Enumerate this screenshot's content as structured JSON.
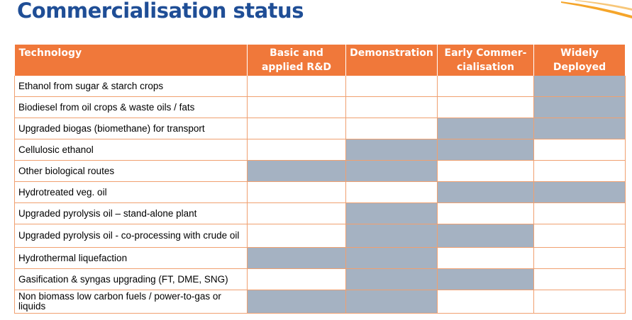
{
  "title": "Commercialisation status",
  "columns": {
    "technology": "Technology",
    "basic_line1": "Basic and",
    "basic_line2": "applied R&D",
    "demonstration": "Demonstration",
    "early_line1": "Early Commer-",
    "early_line2": "cialisation",
    "widely_line1": "Widely",
    "widely_line2": "Deployed"
  },
  "rows": [
    {
      "label": "Ethanol from sugar & starch crops",
      "stages": [
        false,
        false,
        false,
        true
      ]
    },
    {
      "label": "Biodiesel from oil crops & waste oils / fats",
      "stages": [
        false,
        false,
        false,
        true
      ]
    },
    {
      "label": "Upgraded biogas (biomethane) for transport",
      "stages": [
        false,
        false,
        true,
        true
      ]
    },
    {
      "label": "Cellulosic ethanol",
      "stages": [
        false,
        true,
        true,
        false
      ]
    },
    {
      "label": "Other biological routes",
      "stages": [
        true,
        true,
        false,
        false
      ]
    },
    {
      "label": "Hydrotreated veg. oil",
      "stages": [
        false,
        false,
        true,
        true
      ]
    },
    {
      "label": "Upgraded pyrolysis oil – stand-alone plant",
      "stages": [
        false,
        true,
        false,
        false
      ]
    },
    {
      "label": "Upgraded pyrolysis oil - co-processing with crude oil",
      "stages": [
        false,
        true,
        true,
        false
      ]
    },
    {
      "label": "Hydrothermal liquefaction",
      "stages": [
        true,
        true,
        false,
        false
      ]
    },
    {
      "label": "Gasification & syngas upgrading (FT, DME, SNG)",
      "stages": [
        false,
        true,
        true,
        false
      ]
    },
    {
      "label": "Non biomass low carbon fuels / power-to-gas or liquids",
      "stages": [
        true,
        true,
        false,
        false
      ]
    }
  ],
  "colors": {
    "title": "#1f4e96",
    "header_bg": "#f0783a",
    "filled_cell": "#a5b2c2",
    "grid": "#f0a070"
  }
}
